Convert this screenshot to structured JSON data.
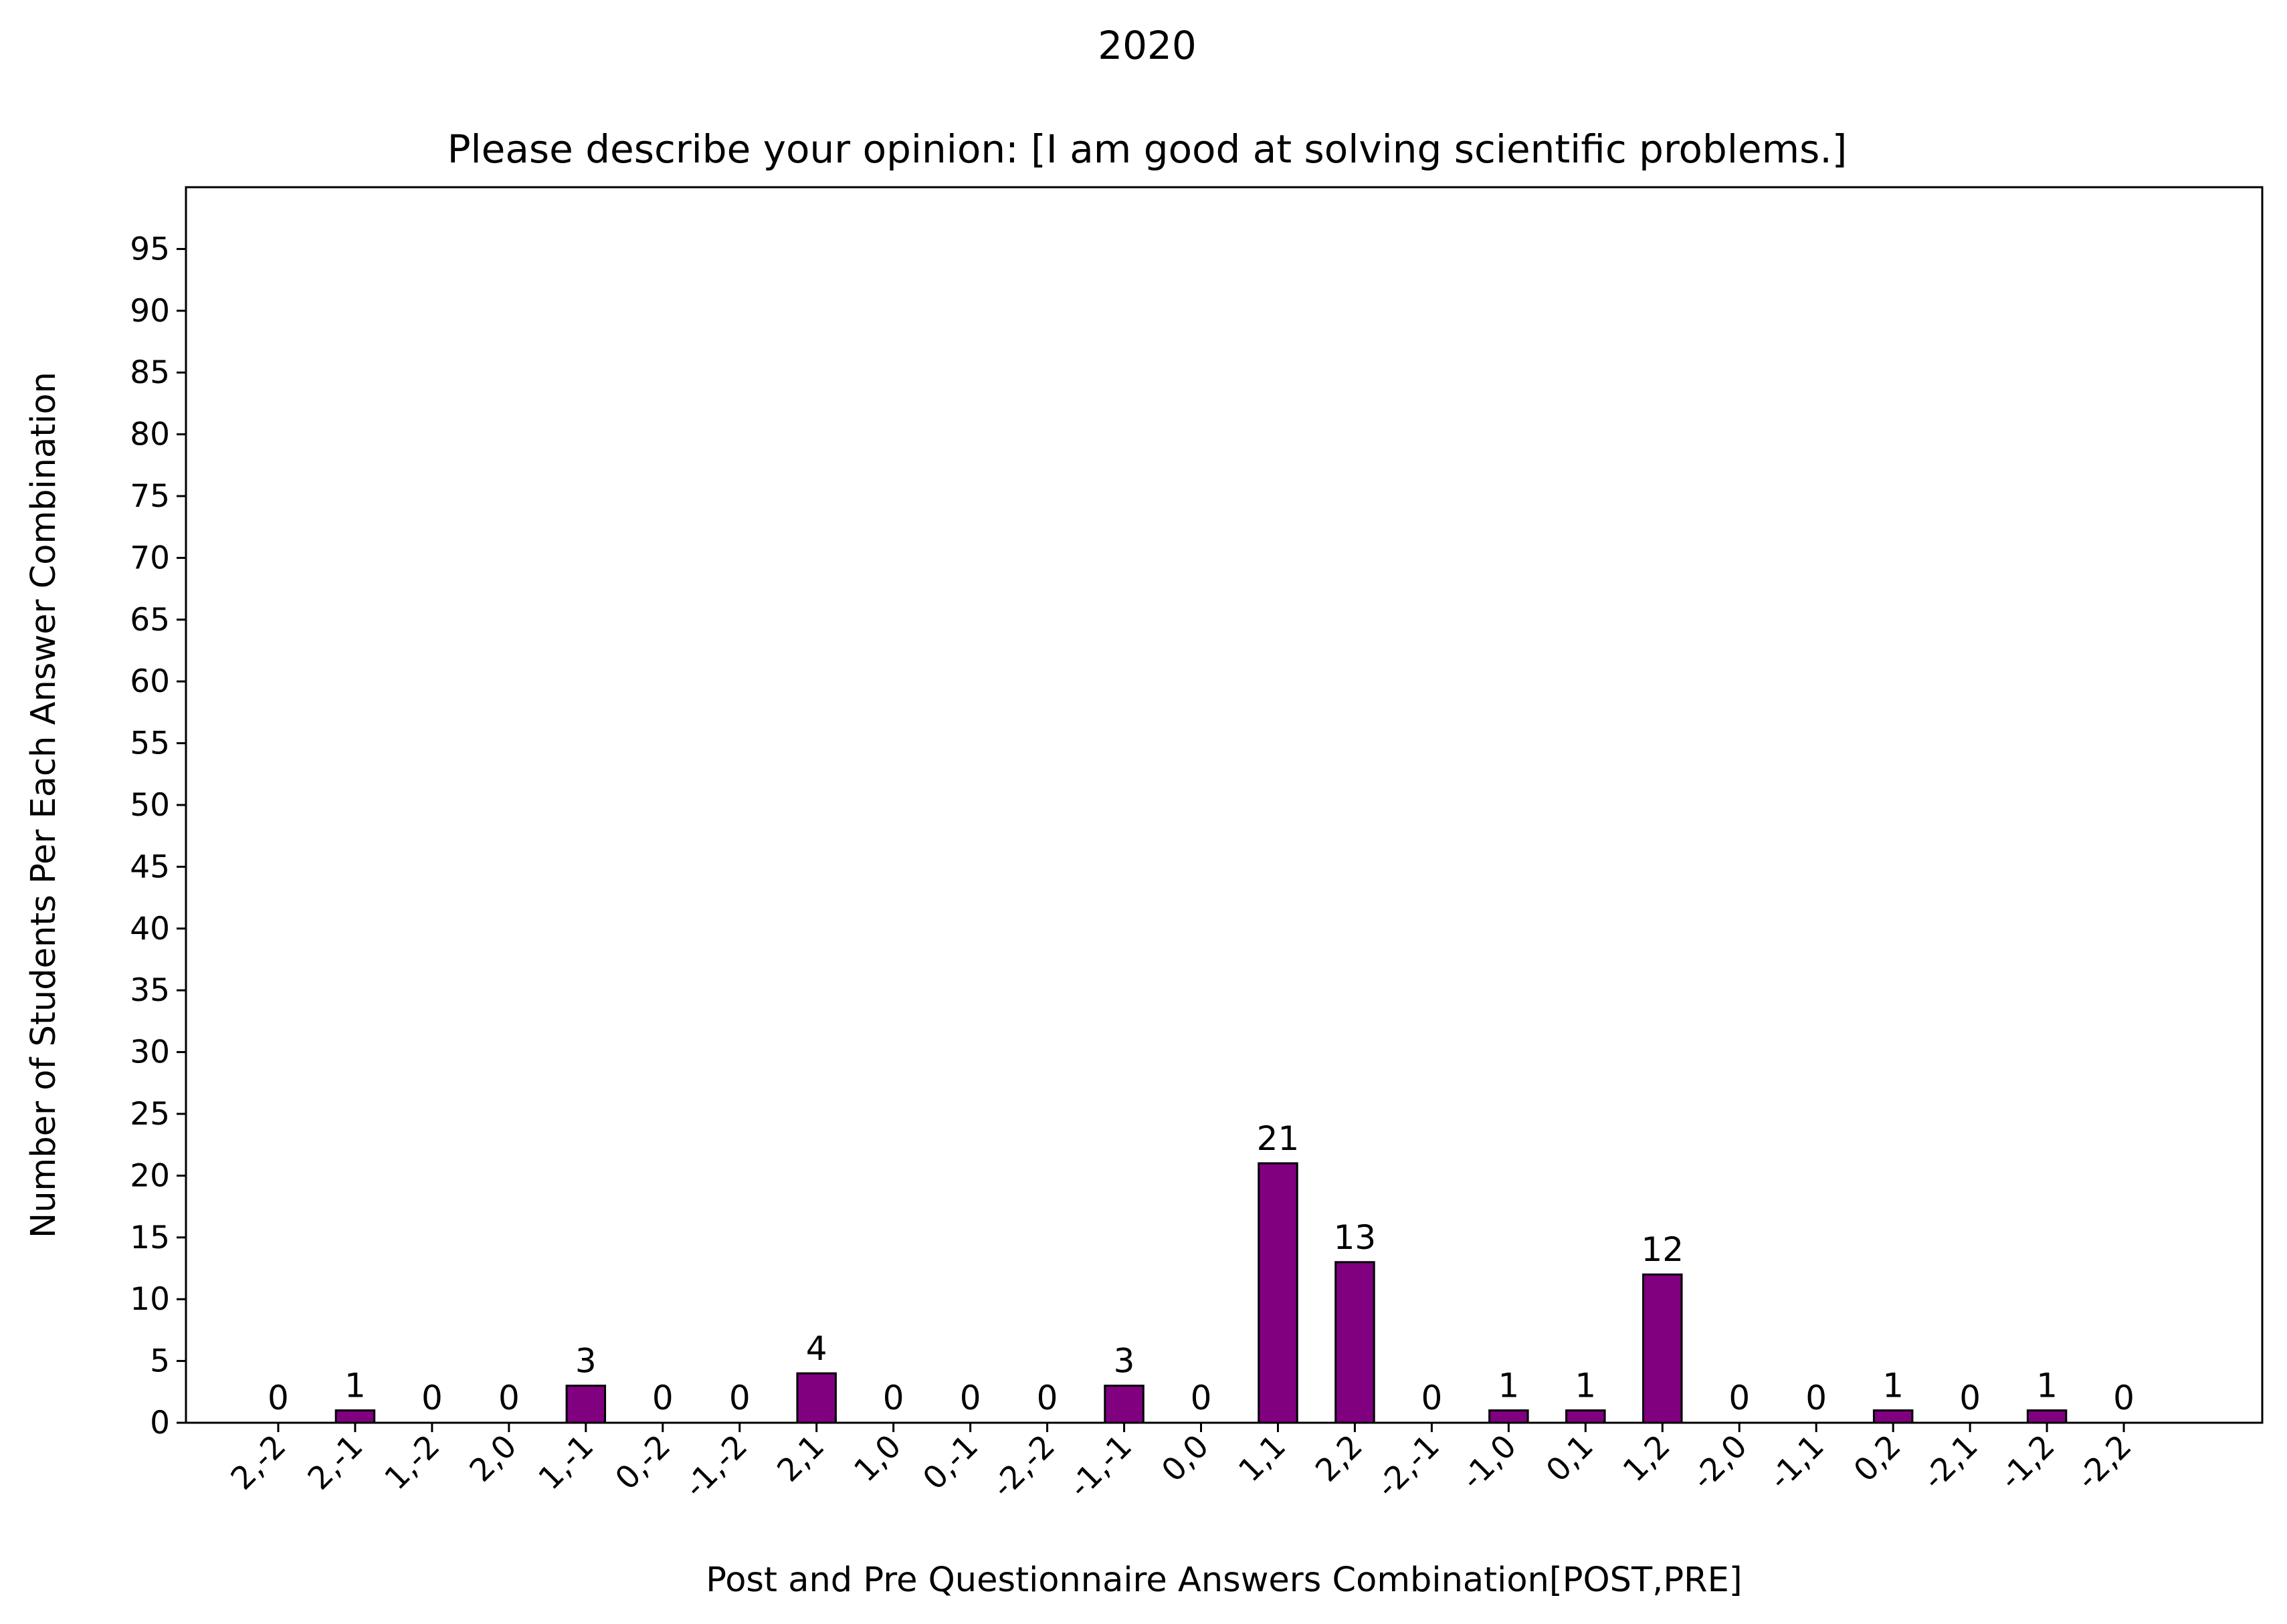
{
  "chart_data": {
    "type": "bar",
    "suptitle": "2020",
    "title": "Please describe your opinion: [I am good at solving scientific problems.]",
    "xlabel": "Post and Pre Questionnaire Answers Combination[POST,PRE]",
    "ylabel": "Number of Students Per Each Answer Combination",
    "categories": [
      "2,-2",
      "2,-1",
      "1,-2",
      "2,0",
      "1,-1",
      "0,-2",
      "-1,-2",
      "2,1",
      "1,0",
      "0,-1",
      "-2,-2",
      "-1,-1",
      "0,0",
      "1,1",
      "2,2",
      "-2,-1",
      "-1,0",
      "0,1",
      "1,2",
      "-2,0",
      "-1,1",
      "0,2",
      "-2,1",
      "-1,2",
      "-2,2"
    ],
    "values": [
      0,
      1,
      0,
      0,
      3,
      0,
      0,
      4,
      0,
      0,
      0,
      3,
      0,
      21,
      13,
      0,
      1,
      1,
      12,
      0,
      0,
      1,
      0,
      1,
      0
    ],
    "ylim": [
      0,
      100
    ],
    "yticks": [
      0,
      5,
      10,
      15,
      20,
      25,
      30,
      35,
      40,
      45,
      50,
      55,
      60,
      65,
      70,
      75,
      80,
      85,
      90,
      95
    ],
    "xlim": [
      -1.2,
      25.8
    ],
    "bar_color": "#800080",
    "edge_color": "#000000",
    "grid": false,
    "legend": "none",
    "show_value_labels": true
  }
}
